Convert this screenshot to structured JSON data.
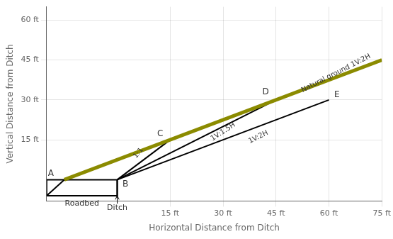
{
  "chart_data": {
    "type": "line",
    "xlabel": "Horizontal Distance from Ditch",
    "ylabel": "Vertical Distance from Ditch",
    "xlim": [
      -20,
      75
    ],
    "ylim": [
      -8,
      65
    ],
    "xticks": [
      {
        "value": 15,
        "label": "15 ft"
      },
      {
        "value": 30,
        "label": "30 ft"
      },
      {
        "value": 45,
        "label": "45 ft"
      },
      {
        "value": 60,
        "label": "60 ft"
      },
      {
        "value": 75,
        "label": "75 ft"
      }
    ],
    "yticks": [
      {
        "value": 15,
        "label": "15 ft"
      },
      {
        "value": 30,
        "label": "30 ft"
      },
      {
        "value": 45,
        "label": "45 ft"
      },
      {
        "value": 60,
        "label": "60 ft"
      }
    ],
    "grid": true,
    "series": [
      {
        "color": "#8B8B00",
        "x": [
          -15,
          75
        ],
        "values": [
          0,
          45
        ]
      },
      {
        "color": "#8B8B00",
        "line_style": "dotted",
        "x": [
          -15,
          0
        ],
        "values": [
          0,
          7.5
        ]
      },
      {
        "color": "#000000",
        "x": [
          0,
          15
        ],
        "values": [
          0,
          15
        ]
      },
      {
        "color": "#000000",
        "x": [
          0,
          45
        ],
        "values": [
          0,
          30
        ]
      },
      {
        "color": "#000000",
        "x": [
          0,
          60
        ],
        "values": [
          0,
          30
        ]
      },
      {
        "color": "#000000",
        "x": [
          -20,
          -15
        ],
        "values": [
          -6,
          0
        ]
      },
      {
        "color": "#000000",
        "x": [
          0,
          0
        ],
        "values": [
          -6,
          0
        ]
      },
      {
        "color": "#000000",
        "x": [
          -20,
          0,
          0,
          -20,
          -20
        ],
        "values": [
          -6,
          -6,
          0,
          0,
          -6
        ]
      }
    ],
    "annotations": [
      {
        "text": "A",
        "x": -18,
        "y": 1.5
      },
      {
        "text": "B",
        "x": 1.5,
        "y": -2.5
      },
      {
        "text": "C",
        "x": 13,
        "y": 16.5
      },
      {
        "text": "D",
        "x": 43,
        "y": 32
      },
      {
        "text": "E",
        "x": 61.5,
        "y": 31
      },
      {
        "text": "1:1",
        "x": 6,
        "y": 10
      },
      {
        "text": "1V:1.5H",
        "x": 30,
        "y": 18
      },
      {
        "text": "1V:2H",
        "x": 40,
        "y": 16
      },
      {
        "text": "Natural ground 1V:2H",
        "x": 62,
        "y": 40
      },
      {
        "text": "Roadbed",
        "x": -10,
        "y": -7.5
      },
      {
        "text": "Ditch",
        "x": 0,
        "y": -9,
        "arrow_to": [
          0,
          -6
        ]
      }
    ]
  }
}
